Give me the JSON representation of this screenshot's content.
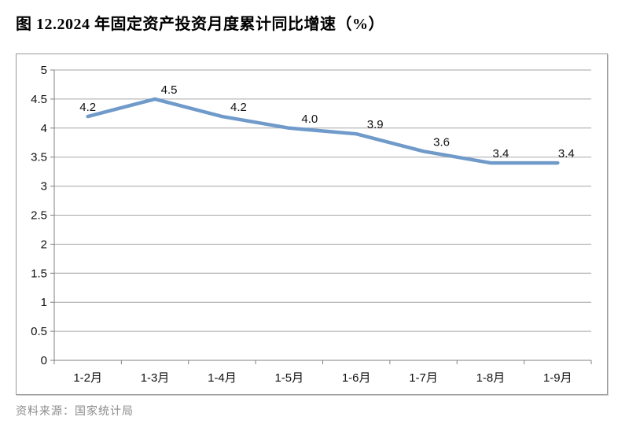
{
  "page": {
    "title": "图 12.2024 年固定资产投资月度累计同比增速（%）",
    "source": "资料来源：国家统计局"
  },
  "chart_data": {
    "type": "line",
    "title": "图 12.2024 年固定资产投资月度累计同比增速（%）",
    "categories": [
      "1-2月",
      "1-3月",
      "1-4月",
      "1-5月",
      "1-6月",
      "1-7月",
      "1-8月",
      "1-9月"
    ],
    "values": [
      4.2,
      4.5,
      4.2,
      4.0,
      3.9,
      3.6,
      3.4,
      3.4
    ],
    "data_labels": [
      "4.2",
      "4.5",
      "4.2",
      "4.0",
      "3.9",
      "3.6",
      "3.4",
      "3.4"
    ],
    "xlabel": "",
    "ylabel": "",
    "ylim": [
      0,
      5
    ],
    "yticks": [
      0,
      0.5,
      1,
      1.5,
      2,
      2.5,
      3,
      3.5,
      4,
      4.5,
      5
    ],
    "ytick_labels": [
      "0",
      "0.5",
      "1",
      "1.5",
      "2",
      "2.5",
      "3",
      "3.5",
      "4",
      "4.5",
      "5"
    ],
    "grid": true,
    "legend": "none",
    "colors": {
      "line": "#6f9ac9",
      "gridline": "#a6a6a6",
      "axis": "#808080",
      "text": "#111111"
    },
    "label_dx": [
      0,
      18,
      21,
      26,
      24,
      23,
      13,
      11
    ]
  }
}
